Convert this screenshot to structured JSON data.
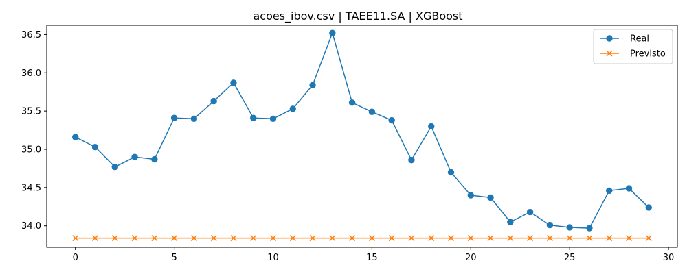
{
  "chart_data": {
    "type": "line",
    "title": "acoes_ibov.csv | TAEE11.SA | XGBoost",
    "xlabel": "",
    "ylabel": "",
    "xlim": [
      -1.45,
      30.45
    ],
    "ylim": [
      33.72,
      36.62
    ],
    "x_ticks": [
      0,
      5,
      10,
      15,
      20,
      25,
      30
    ],
    "y_ticks": [
      34.0,
      34.5,
      35.0,
      35.5,
      36.0,
      36.5
    ],
    "grid": false,
    "legend_position": "top-right",
    "x": [
      0,
      1,
      2,
      3,
      4,
      5,
      6,
      7,
      8,
      9,
      10,
      11,
      12,
      13,
      14,
      15,
      16,
      17,
      18,
      19,
      20,
      21,
      22,
      23,
      24,
      25,
      26,
      27,
      28,
      29
    ],
    "series": [
      {
        "name": "Real",
        "color": "#1f77b4",
        "marker": "circle",
        "values": [
          35.16,
          35.03,
          34.77,
          34.9,
          34.87,
          35.41,
          35.4,
          35.63,
          35.87,
          35.41,
          35.4,
          35.53,
          35.84,
          36.52,
          35.61,
          35.49,
          35.38,
          34.86,
          35.3,
          34.7,
          34.4,
          34.37,
          34.05,
          34.18,
          34.01,
          33.98,
          33.97,
          34.46,
          34.49,
          34.24
        ]
      },
      {
        "name": "Previsto",
        "color": "#ff7f0e",
        "marker": "x",
        "values": [
          33.84,
          33.84,
          33.84,
          33.84,
          33.84,
          33.84,
          33.84,
          33.84,
          33.84,
          33.84,
          33.84,
          33.84,
          33.84,
          33.84,
          33.84,
          33.84,
          33.84,
          33.84,
          33.84,
          33.84,
          33.84,
          33.84,
          33.84,
          33.84,
          33.84,
          33.84,
          33.84,
          33.84,
          33.84,
          33.84
        ]
      }
    ]
  }
}
